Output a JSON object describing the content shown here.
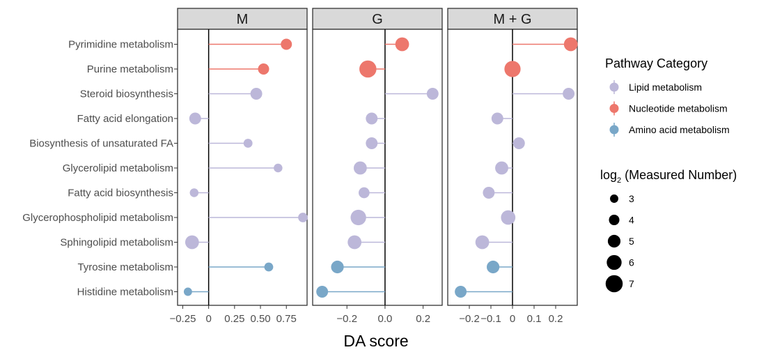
{
  "chart_data": {
    "type": "lollipop",
    "xlabel": "DA score",
    "categories": [
      "Pyrimidine metabolism",
      "Purine metabolism",
      "Steroid biosynthesis",
      "Fatty acid elongation",
      "Biosynthesis of unsaturated FA",
      "Glycerolipid metabolism",
      "Fatty acid biosynthesis",
      "Glycerophospholipid metabolism",
      "Sphingolipid metabolism",
      "Tyrosine metabolism",
      "Histidine metabolism"
    ],
    "category_group": [
      "Nucleotide metabolism",
      "Nucleotide metabolism",
      "Lipid metabolism",
      "Lipid metabolism",
      "Lipid metabolism",
      "Lipid metabolism",
      "Lipid metabolism",
      "Lipid metabolism",
      "Lipid metabolism",
      "Amino acid metabolism",
      "Amino acid metabolism"
    ],
    "panels": [
      {
        "title": "M",
        "xlim": [
          -0.3,
          0.95
        ],
        "ticks": [
          -0.25,
          0,
          0.25,
          0.5,
          0.75
        ],
        "tick_labels": [
          "−0.25",
          "0",
          "0.25",
          "0.50",
          "0.75"
        ],
        "values": [
          0.75,
          0.53,
          0.46,
          -0.13,
          0.38,
          0.67,
          -0.14,
          0.91,
          -0.16,
          0.58,
          -0.2
        ],
        "sizes": [
          4.3,
          4.3,
          4.6,
          4.6,
          3.3,
          3.2,
          3.2,
          3.6,
          5.5,
          3.3,
          3.0
        ]
      },
      {
        "title": "G",
        "xlim": [
          -0.38,
          0.3
        ],
        "ticks": [
          -0.2,
          0,
          0.2
        ],
        "tick_labels": [
          "−0.2",
          "0.0",
          "0.2"
        ],
        "values": [
          0.09,
          -0.09,
          0.25,
          -0.07,
          -0.07,
          -0.13,
          -0.11,
          -0.14,
          -0.16,
          -0.25,
          -0.33
        ],
        "sizes": [
          5.5,
          7.0,
          4.6,
          4.6,
          4.6,
          5.2,
          4.2,
          6.3,
          5.5,
          5.0,
          4.6
        ]
      },
      {
        "title": "M + G",
        "xlim": [
          -0.3,
          0.3
        ],
        "ticks": [
          -0.2,
          -0.1,
          0,
          0.1,
          0.2
        ],
        "tick_labels": [
          "−0.2",
          "−0.1",
          "0",
          "0.1",
          "0.2"
        ],
        "values": [
          0.27,
          0.0,
          0.26,
          -0.07,
          0.03,
          -0.05,
          -0.11,
          -0.02,
          -0.14,
          -0.09,
          -0.24
        ],
        "sizes": [
          5.5,
          6.6,
          4.6,
          4.6,
          4.6,
          5.2,
          4.6,
          5.8,
          5.5,
          5.0,
          4.6
        ]
      }
    ],
    "colors": {
      "Lipid metabolism": "#bcb7d9",
      "Nucleotide metabolism": "#ed776c",
      "Amino acid metabolism": "#79a7c8"
    },
    "legend": {
      "placement": "right",
      "color_title": "Pathway Category",
      "color_entries": [
        "Lipid metabolism",
        "Nucleotide metabolism",
        "Amino acid metabolism"
      ],
      "size_title_main": "log",
      "size_title_sub": "2",
      "size_title_rest": " (Measured Number)",
      "size_entries": [
        3,
        4,
        5,
        6,
        7
      ]
    }
  }
}
